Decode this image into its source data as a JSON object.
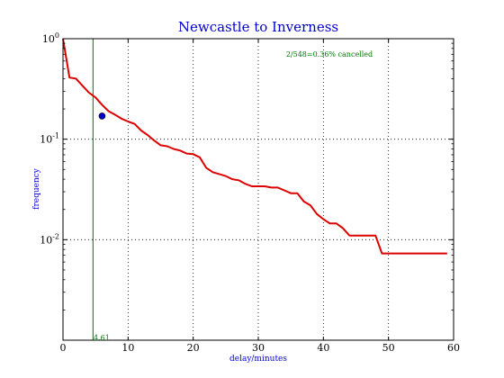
{
  "chart_data": {
    "type": "line",
    "title": "Newcastle to Inverness",
    "xlabel": "delay/minutes",
    "ylabel": "frequency",
    "xlim": [
      0,
      60
    ],
    "ylim": [
      0.001,
      1
    ],
    "yscale": "log",
    "grid": true,
    "x_ticks": [
      0,
      10,
      20,
      30,
      40,
      50,
      60
    ],
    "y_ticks": [
      {
        "value": 1,
        "label": "10^0"
      },
      {
        "value": 0.1,
        "label": "10^-1"
      },
      {
        "value": 0.01,
        "label": "10^-2"
      }
    ],
    "annotation": "2/548=0.36% cancelled",
    "vertical_line": {
      "x": 4.61,
      "label": "4.61",
      "color": "#007700"
    },
    "marker_point": {
      "x": 6,
      "y": 0.17,
      "color": "#0000cc"
    },
    "series": [
      {
        "color": "#dd0000",
        "x": [
          0,
          1,
          2,
          3,
          4,
          5,
          6,
          7,
          8,
          9,
          10,
          11,
          12,
          13,
          14,
          15,
          16,
          17,
          18,
          19,
          20,
          21,
          22,
          23,
          24,
          25,
          26,
          27,
          28,
          29,
          30,
          31,
          32,
          33,
          34,
          35,
          36,
          37,
          38,
          39,
          40,
          41,
          42,
          43,
          44,
          45,
          46,
          47,
          48,
          49,
          50,
          51,
          52,
          53,
          54,
          55,
          56,
          57,
          58,
          59
        ],
        "y": [
          1.0,
          0.41,
          0.4,
          0.34,
          0.29,
          0.26,
          0.22,
          0.19,
          0.175,
          0.16,
          0.15,
          0.142,
          0.122,
          0.11,
          0.097,
          0.087,
          0.085,
          0.08,
          0.077,
          0.072,
          0.071,
          0.066,
          0.052,
          0.047,
          0.045,
          0.043,
          0.04,
          0.039,
          0.036,
          0.034,
          0.034,
          0.034,
          0.033,
          0.033,
          0.031,
          0.029,
          0.029,
          0.024,
          0.022,
          0.018,
          0.016,
          0.0145,
          0.0145,
          0.013,
          0.011,
          0.011,
          0.011,
          0.011,
          0.011,
          0.0073,
          0.0073,
          0.0073,
          0.0073,
          0.0073,
          0.0073,
          0.0073,
          0.0073,
          0.0073,
          0.0073,
          0.0073
        ]
      }
    ]
  }
}
